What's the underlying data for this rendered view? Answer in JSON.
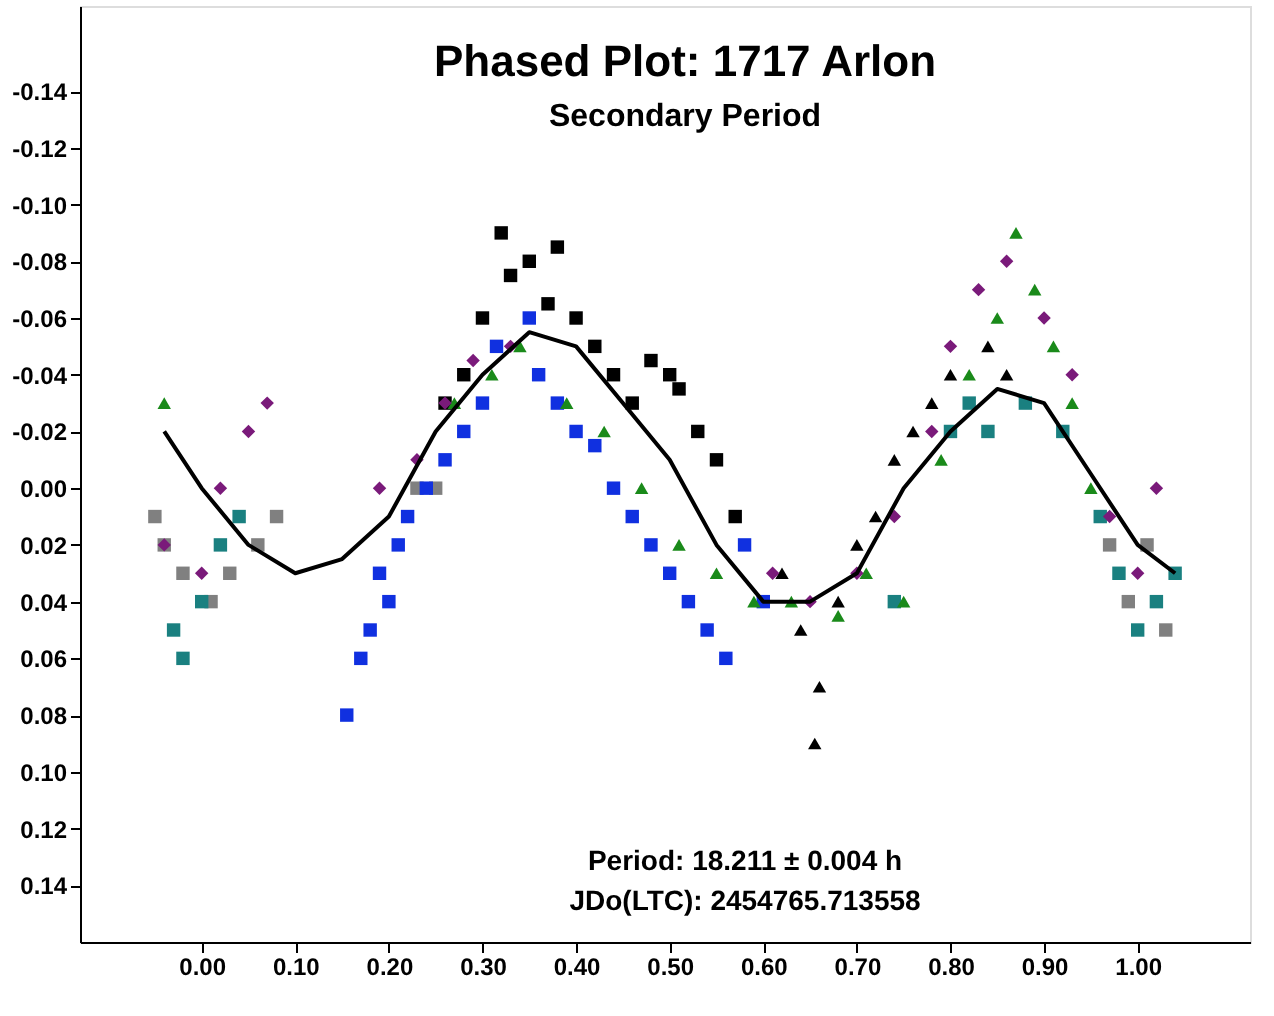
{
  "chart_data": {
    "type": "scatter",
    "title": "Phased Plot: 1717 Arlon",
    "subtitle": "Secondary Period",
    "annotations": [
      "Period: 18.211 ± 0.004 h",
      "JDo(LTC): 2454765.713558"
    ],
    "xlim": [
      -0.13,
      1.12
    ],
    "ylim": [
      0.16,
      -0.17
    ],
    "xticks": [
      {
        "value": 0,
        "label": "0.00"
      },
      {
        "value": 0.1,
        "label": "0.10"
      },
      {
        "value": 0.2,
        "label": "0.20"
      },
      {
        "value": 0.3,
        "label": "0.30"
      },
      {
        "value": 0.4,
        "label": "0.40"
      },
      {
        "value": 0.5,
        "label": "0.50"
      },
      {
        "value": 0.6,
        "label": "0.60"
      },
      {
        "value": 0.7,
        "label": "0.70"
      },
      {
        "value": 0.8,
        "label": "0.80"
      },
      {
        "value": 0.9,
        "label": "0.90"
      },
      {
        "value": 1,
        "label": "1.00"
      }
    ],
    "yticks": [
      {
        "value": -0.14,
        "label": "-0.14"
      },
      {
        "value": -0.12,
        "label": "-0.12"
      },
      {
        "value": -0.1,
        "label": "-0.10"
      },
      {
        "value": -0.08,
        "label": "-0.08"
      },
      {
        "value": -0.06,
        "label": "-0.06"
      },
      {
        "value": -0.04,
        "label": "-0.04"
      },
      {
        "value": -0.02,
        "label": "-0.02"
      },
      {
        "value": 0,
        "label": "0.00"
      },
      {
        "value": 0.02,
        "label": "0.02"
      },
      {
        "value": 0.04,
        "label": "0.04"
      },
      {
        "value": 0.06,
        "label": "0.06"
      },
      {
        "value": 0.08,
        "label": "0.08"
      },
      {
        "value": 0.1,
        "label": "0.10"
      },
      {
        "value": 0.12,
        "label": "0.12"
      },
      {
        "value": 0.14,
        "label": "0.14"
      }
    ],
    "grid": false,
    "series": [
      {
        "color": "#808080",
        "marker": "square",
        "x": [
          -0.05,
          -0.04,
          -0.02,
          0.01,
          0.03,
          0.06,
          0.08,
          0.23,
          0.25,
          0.97,
          0.99,
          1.01,
          1.03
        ],
        "values": [
          0.01,
          0.02,
          0.03,
          0.04,
          0.03,
          0.02,
          0.01,
          0.0,
          0.0,
          0.02,
          0.04,
          0.02,
          0.05
        ]
      },
      {
        "color": "#1a8080",
        "marker": "square",
        "x": [
          -0.03,
          -0.02,
          0.0,
          0.02,
          0.04,
          0.74,
          0.8,
          0.82,
          0.84,
          0.88,
          0.92,
          0.96,
          0.98,
          1.0,
          1.02,
          1.04
        ],
        "values": [
          0.05,
          0.06,
          0.04,
          0.02,
          0.01,
          0.04,
          -0.02,
          -0.03,
          -0.02,
          -0.03,
          -0.02,
          0.01,
          0.03,
          0.05,
          0.04,
          0.03
        ]
      },
      {
        "color": "#000000",
        "marker": "square",
        "x": [
          0.26,
          0.28,
          0.3,
          0.32,
          0.33,
          0.35,
          0.37,
          0.38,
          0.4,
          0.42,
          0.44,
          0.46,
          0.48,
          0.5,
          0.51,
          0.53,
          0.55,
          0.57
        ],
        "values": [
          -0.03,
          -0.04,
          -0.06,
          -0.09,
          -0.075,
          -0.08,
          -0.065,
          -0.085,
          -0.06,
          -0.05,
          -0.04,
          -0.03,
          -0.045,
          -0.04,
          -0.035,
          -0.02,
          -0.01,
          0.01
        ]
      },
      {
        "color": "#000000",
        "marker": "triangle",
        "x": [
          0.62,
          0.64,
          0.655,
          0.66,
          0.68,
          0.7,
          0.72,
          0.74,
          0.76,
          0.78,
          0.8,
          0.84,
          0.86
        ],
        "values": [
          0.03,
          0.05,
          0.09,
          0.07,
          0.04,
          0.02,
          0.01,
          -0.01,
          -0.02,
          -0.03,
          -0.04,
          -0.05,
          -0.04
        ]
      },
      {
        "color": "#1030e0",
        "marker": "square",
        "x": [
          0.155,
          0.17,
          0.18,
          0.19,
          0.2,
          0.21,
          0.22,
          0.24,
          0.26,
          0.28,
          0.3,
          0.315,
          0.35,
          0.36,
          0.38,
          0.4,
          0.42,
          0.44,
          0.46,
          0.48,
          0.5,
          0.52,
          0.54,
          0.56,
          0.58,
          0.6
        ],
        "values": [
          0.08,
          0.06,
          0.05,
          0.03,
          0.04,
          0.02,
          0.01,
          0.0,
          -0.01,
          -0.02,
          -0.03,
          -0.05,
          -0.06,
          -0.04,
          -0.03,
          -0.02,
          -0.015,
          0.0,
          0.01,
          0.02,
          0.03,
          0.04,
          0.05,
          0.06,
          0.02,
          0.04
        ]
      },
      {
        "color": "#1a8a1a",
        "marker": "triangle",
        "x": [
          -0.04,
          0.27,
          0.31,
          0.34,
          0.39,
          0.43,
          0.47,
          0.51,
          0.55,
          0.59,
          0.63,
          0.68,
          0.71,
          0.75,
          0.79,
          0.82,
          0.85,
          0.87,
          0.89,
          0.91,
          0.93,
          0.95
        ],
        "values": [
          -0.03,
          -0.03,
          -0.04,
          -0.05,
          -0.03,
          -0.02,
          0.0,
          0.02,
          0.03,
          0.04,
          0.04,
          0.045,
          0.03,
          0.04,
          -0.01,
          -0.04,
          -0.06,
          -0.09,
          -0.07,
          -0.05,
          -0.03,
          0.0
        ]
      },
      {
        "color": "#7a1a7a",
        "marker": "diamond",
        "x": [
          -0.04,
          0.0,
          0.02,
          0.05,
          0.07,
          0.19,
          0.23,
          0.26,
          0.29,
          0.33,
          0.61,
          0.65,
          0.7,
          0.74,
          0.78,
          0.8,
          0.83,
          0.86,
          0.9,
          0.93,
          0.97,
          1.0,
          1.02
        ],
        "values": [
          0.02,
          0.03,
          0.0,
          -0.02,
          -0.03,
          0.0,
          -0.01,
          -0.03,
          -0.045,
          -0.05,
          0.03,
          0.04,
          0.03,
          0.01,
          -0.02,
          -0.05,
          -0.07,
          -0.08,
          -0.06,
          -0.04,
          0.01,
          0.03,
          0.0
        ]
      },
      {
        "type": "line",
        "color": "#000000",
        "x": [
          -0.04,
          0.0,
          0.05,
          0.1,
          0.15,
          0.2,
          0.25,
          0.3,
          0.35,
          0.4,
          0.45,
          0.5,
          0.55,
          0.6,
          0.65,
          0.7,
          0.75,
          0.8,
          0.85,
          0.9,
          0.95,
          1.0,
          1.04
        ],
        "values": [
          -0.02,
          0.0,
          0.02,
          0.03,
          0.025,
          0.01,
          -0.02,
          -0.04,
          -0.055,
          -0.05,
          -0.03,
          -0.01,
          0.02,
          0.04,
          0.04,
          0.03,
          0.0,
          -0.02,
          -0.035,
          -0.03,
          -0.005,
          0.02,
          0.03
        ]
      }
    ]
  }
}
